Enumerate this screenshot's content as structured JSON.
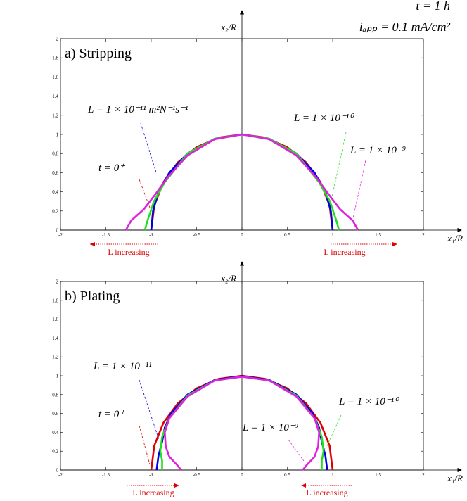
{
  "chart_data": [
    {
      "type": "line",
      "title": "a) Stripping",
      "notes": [
        "t = 1 h",
        "iₐₚₚ = 0.1 mA/cm²"
      ],
      "x_label": "x₁/R",
      "y_label": "x₂/R",
      "xlim": [
        -2,
        2
      ],
      "ylim": [
        0,
        2
      ],
      "xticks": [
        -2,
        -1.5,
        -1,
        -0.5,
        0,
        0.5,
        1,
        1.5,
        2
      ],
      "yticks": [
        0,
        0.2,
        0.4,
        0.6,
        0.8,
        1,
        1.2,
        1.4,
        1.6,
        1.8,
        2
      ],
      "annotations": [
        "L increasing",
        "L increasing"
      ],
      "series": [
        {
          "name": "t = 0⁺",
          "color": "#e00000",
          "x": [
            -1,
            -0.966,
            -0.866,
            -0.707,
            -0.5,
            -0.259,
            0,
            0.259,
            0.5,
            0.707,
            0.866,
            0.966,
            1
          ],
          "y": [
            0,
            0.259,
            0.5,
            0.707,
            0.866,
            0.966,
            1,
            0.966,
            0.866,
            0.707,
            0.5,
            0.259,
            0
          ]
        },
        {
          "name": "L = 1 × 10⁻¹¹ m²N⁻¹s⁻¹",
          "color": "#0000e0",
          "x": [
            -1,
            -0.98,
            -0.92,
            -0.8,
            -0.6,
            -0.3,
            0,
            0.3,
            0.6,
            0.8,
            0.92,
            0.98,
            1
          ],
          "y": [
            0,
            0.2,
            0.4,
            0.6,
            0.8,
            0.955,
            1,
            0.955,
            0.8,
            0.6,
            0.4,
            0.2,
            0
          ]
        },
        {
          "name": "L = 1 × 10⁻¹⁰",
          "color": "#22dd22",
          "x": [
            -1.07,
            -1.04,
            -0.97,
            -0.85,
            -0.6,
            -0.3,
            0,
            0.3,
            0.6,
            0.85,
            0.97,
            1.04,
            1.07
          ],
          "y": [
            0,
            0.1,
            0.3,
            0.5,
            0.8,
            0.955,
            1,
            0.955,
            0.8,
            0.5,
            0.3,
            0.1,
            0
          ]
        },
        {
          "name": "L = 1 × 10⁻⁹",
          "color": "#e020e0",
          "x": [
            -1.28,
            -1.22,
            -1.08,
            -0.95,
            -0.82,
            -0.6,
            -0.3,
            0,
            0.3,
            0.6,
            0.82,
            0.95,
            1.08,
            1.22,
            1.28
          ],
          "y": [
            0,
            0.1,
            0.22,
            0.38,
            0.55,
            0.78,
            0.95,
            1,
            0.95,
            0.78,
            0.55,
            0.38,
            0.22,
            0.1,
            0
          ]
        }
      ]
    },
    {
      "type": "line",
      "title": "b) Plating",
      "x_label": "x₁/R",
      "y_label": "x₂/R",
      "xlim": [
        -2,
        2
      ],
      "ylim": [
        0,
        2
      ],
      "xticks": [
        -2,
        -1.5,
        -1,
        -0.5,
        0,
        0.5,
        1,
        1.5,
        2
      ],
      "yticks": [
        0,
        0.2,
        0.4,
        0.6,
        0.8,
        1,
        1.2,
        1.4,
        1.6,
        1.8,
        2
      ],
      "annotations": [
        "L increasing",
        "L increasing"
      ],
      "series": [
        {
          "name": "t = 0⁺",
          "color": "#e00000",
          "x": [
            -1,
            -0.966,
            -0.866,
            -0.707,
            -0.5,
            -0.259,
            0,
            0.259,
            0.5,
            0.707,
            0.866,
            0.966,
            1
          ],
          "y": [
            0,
            0.259,
            0.5,
            0.707,
            0.866,
            0.966,
            1,
            0.966,
            0.866,
            0.707,
            0.5,
            0.259,
            0
          ]
        },
        {
          "name": "L = 1 × 10⁻¹¹",
          "color": "#0000e0",
          "x": [
            -0.94,
            -0.92,
            -0.88,
            -0.85,
            -0.78,
            -0.6,
            -0.3,
            0,
            0.3,
            0.6,
            0.78,
            0.85,
            0.88,
            0.92,
            0.94
          ],
          "y": [
            0,
            0.15,
            0.3,
            0.45,
            0.6,
            0.8,
            0.955,
            0.995,
            0.955,
            0.8,
            0.6,
            0.45,
            0.3,
            0.15,
            0
          ]
        },
        {
          "name": "L = 1 × 10⁻¹⁰",
          "color": "#22dd22",
          "x": [
            -0.88,
            -0.88,
            -0.9,
            -0.88,
            -0.8,
            -0.6,
            -0.3,
            0,
            0.3,
            0.6,
            0.8,
            0.88,
            0.9,
            0.88,
            0.88
          ],
          "y": [
            0,
            0.1,
            0.2,
            0.35,
            0.55,
            0.79,
            0.95,
            0.99,
            0.95,
            0.79,
            0.55,
            0.35,
            0.2,
            0.1,
            0
          ]
        },
        {
          "name": "L = 1 × 10⁻⁹",
          "color": "#e020e0",
          "x": [
            -0.67,
            -0.72,
            -0.8,
            -0.84,
            -0.85,
            -0.8,
            -0.6,
            -0.3,
            0,
            0.3,
            0.6,
            0.8,
            0.85,
            0.84,
            0.8,
            0.72,
            0.67
          ],
          "y": [
            0,
            0.06,
            0.14,
            0.25,
            0.4,
            0.55,
            0.78,
            0.95,
            0.99,
            0.95,
            0.78,
            0.55,
            0.4,
            0.25,
            0.14,
            0.06,
            0
          ]
        }
      ]
    }
  ]
}
